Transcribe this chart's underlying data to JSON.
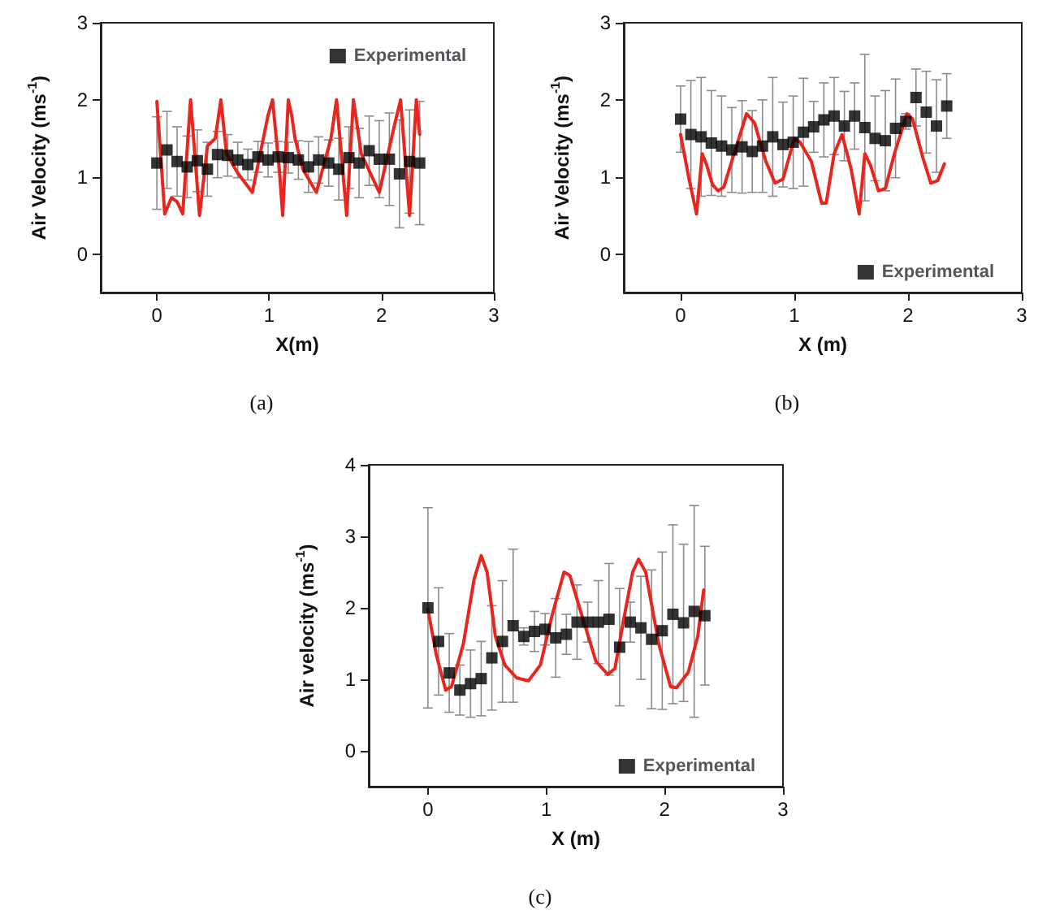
{
  "chart_data": [
    {
      "type": "scatter",
      "xlabel": "X(m)",
      "ylabel": "Air Velocity (ms$^{-1}$)",
      "annotations": [
        "(a)"
      ],
      "xlim": [
        -0.5,
        3
      ],
      "ylim": [
        -0.5,
        3
      ],
      "xticks": [
        0,
        1,
        2,
        3
      ],
      "yticks": [
        0,
        1,
        2,
        3
      ],
      "grid": false,
      "legend": "top right",
      "series": [
        {
          "name": "Experimental",
          "marker": "square",
          "color": "#000000",
          "x": [
            0,
            0.09,
            0.18,
            0.27,
            0.36,
            0.45,
            0.54,
            0.63,
            0.72,
            0.81,
            0.9,
            0.99,
            1.08,
            1.17,
            1.26,
            1.35,
            1.44,
            1.53,
            1.62,
            1.71,
            1.8,
            1.89,
            1.98,
            2.07,
            2.16,
            2.25,
            2.34
          ],
          "values": [
            1.18,
            1.35,
            1.2,
            1.13,
            1.21,
            1.1,
            1.29,
            1.28,
            1.22,
            1.16,
            1.26,
            1.22,
            1.26,
            1.25,
            1.22,
            1.13,
            1.22,
            1.18,
            1.1,
            1.25,
            1.18,
            1.34,
            1.23,
            1.23,
            1.04,
            1.2,
            1.18
          ],
          "errors": [
            0.6,
            0.5,
            0.45,
            0.4,
            0.4,
            0.35,
            0.3,
            0.27,
            0.23,
            0.2,
            0.2,
            0.22,
            0.2,
            0.2,
            0.25,
            0.33,
            0.3,
            0.3,
            0.4,
            0.4,
            0.45,
            0.45,
            0.5,
            0.6,
            0.7,
            0.67,
            0.8
          ]
        },
        {
          "type": "line",
          "color": "#e8261e",
          "x": [
            0,
            0.07,
            0.13,
            0.18,
            0.23,
            0.3,
            0.38,
            0.45,
            0.52,
            0.57,
            0.62,
            0.72,
            0.85,
            0.99,
            1.03,
            1.09,
            1.12,
            1.17,
            1.2,
            1.23,
            1.3,
            1.42,
            1.55,
            1.6,
            1.69,
            1.75,
            1.82,
            1.98,
            2.12,
            2.17,
            2.25,
            2.31,
            2.34
          ],
          "values": [
            1.98,
            0.52,
            0.73,
            0.68,
            0.52,
            2.0,
            0.5,
            1.4,
            1.5,
            2.0,
            1.3,
            1.05,
            0.8,
            1.8,
            2.0,
            1.1,
            0.5,
            2.0,
            1.8,
            1.5,
            1.1,
            0.8,
            1.5,
            2.0,
            0.5,
            2.0,
            1.3,
            0.8,
            1.7,
            2.0,
            0.5,
            2.0,
            1.55
          ]
        }
      ]
    },
    {
      "type": "scatter",
      "xlabel": "X (m)",
      "ylabel": "Air Velocity (ms$^{-1}$)",
      "annotations": [
        "(b)"
      ],
      "xlim": [
        -0.5,
        3
      ],
      "ylim": [
        -0.5,
        3
      ],
      "xticks": [
        0,
        1,
        2,
        3
      ],
      "yticks": [
        0,
        1,
        2,
        3
      ],
      "grid": false,
      "legend": "bottom right",
      "series": [
        {
          "name": "Experimental",
          "marker": "square",
          "color": "#000000",
          "x": [
            0,
            0.09,
            0.18,
            0.27,
            0.36,
            0.45,
            0.54,
            0.63,
            0.72,
            0.81,
            0.9,
            0.99,
            1.08,
            1.17,
            1.26,
            1.35,
            1.44,
            1.53,
            1.62,
            1.71,
            1.8,
            1.89,
            1.98,
            2.07,
            2.16,
            2.25,
            2.34
          ],
          "values": [
            1.75,
            1.55,
            1.52,
            1.44,
            1.4,
            1.35,
            1.39,
            1.33,
            1.4,
            1.52,
            1.42,
            1.45,
            1.58,
            1.65,
            1.74,
            1.79,
            1.66,
            1.79,
            1.64,
            1.5,
            1.47,
            1.63,
            1.72,
            2.03,
            1.84,
            1.66,
            1.92
          ],
          "errors": [
            0.43,
            0.7,
            0.77,
            0.68,
            0.65,
            0.55,
            0.6,
            0.53,
            0.6,
            0.77,
            0.55,
            0.6,
            0.7,
            0.33,
            0.48,
            0.5,
            0.45,
            0.43,
            0.95,
            0.55,
            0.65,
            0.64,
            0.1,
            0.37,
            0.53,
            0.6,
            0.42
          ]
        },
        {
          "type": "line",
          "color": "#e8261e",
          "x": [
            0,
            0.07,
            0.14,
            0.19,
            0.23,
            0.28,
            0.33,
            0.38,
            0.47,
            0.58,
            0.65,
            0.75,
            0.83,
            0.9,
            1.0,
            1.05,
            1.15,
            1.24,
            1.28,
            1.35,
            1.42,
            1.5,
            1.57,
            1.62,
            1.67,
            1.74,
            1.8,
            1.88,
            1.99,
            2.04,
            2.13,
            2.2,
            2.26,
            2.32
          ],
          "values": [
            1.55,
            1.0,
            0.52,
            1.3,
            1.15,
            0.9,
            0.82,
            0.87,
            1.3,
            1.82,
            1.7,
            1.2,
            0.92,
            0.97,
            1.5,
            1.45,
            1.2,
            0.66,
            0.66,
            1.3,
            1.55,
            1.1,
            0.52,
            1.3,
            1.15,
            0.82,
            0.85,
            1.3,
            1.82,
            1.75,
            1.25,
            0.92,
            0.95,
            1.17
          ]
        }
      ]
    },
    {
      "type": "scatter",
      "xlabel": "X (m)",
      "ylabel": "Air velocity (ms$^{-1}$)",
      "annotations": [
        "(c)"
      ],
      "xlim": [
        -0.5,
        3
      ],
      "ylim": [
        -0.5,
        4
      ],
      "xticks": [
        0,
        1,
        2,
        3
      ],
      "yticks": [
        0,
        1,
        2,
        3,
        4
      ],
      "grid": false,
      "legend": "bottom right",
      "series": [
        {
          "name": "Experimental",
          "marker": "square",
          "color": "#000000",
          "x": [
            0,
            0.09,
            0.18,
            0.27,
            0.36,
            0.45,
            0.54,
            0.63,
            0.72,
            0.81,
            0.9,
            0.99,
            1.08,
            1.17,
            1.26,
            1.35,
            1.44,
            1.53,
            1.62,
            1.71,
            1.8,
            1.89,
            1.98,
            2.07,
            2.16,
            2.25,
            2.34
          ],
          "values": [
            2.0,
            1.53,
            1.09,
            0.85,
            0.94,
            1.01,
            1.3,
            1.53,
            1.75,
            1.6,
            1.67,
            1.7,
            1.58,
            1.63,
            1.8,
            1.8,
            1.8,
            1.84,
            1.45,
            1.8,
            1.72,
            1.56,
            1.68,
            1.91,
            1.79,
            1.95,
            1.89
          ],
          "errors": [
            1.4,
            0.75,
            0.55,
            0.35,
            0.47,
            0.52,
            0.73,
            0.85,
            1.07,
            0.12,
            0.28,
            0.22,
            0.55,
            0.28,
            0.52,
            0.28,
            0.58,
            0.78,
            0.82,
            0.28,
            0.72,
            0.97,
            1.1,
            1.25,
            1.1,
            1.48,
            0.97
          ]
        },
        {
          "type": "line",
          "color": "#e8261e",
          "x": [
            0,
            0.07,
            0.15,
            0.2,
            0.3,
            0.39,
            0.45,
            0.5,
            0.57,
            0.65,
            0.75,
            0.85,
            0.95,
            1.05,
            1.15,
            1.2,
            1.3,
            1.42,
            1.52,
            1.58,
            1.65,
            1.73,
            1.78,
            1.84,
            1.95,
            2.05,
            2.1,
            2.2,
            2.28,
            2.33
          ],
          "values": [
            1.98,
            1.35,
            0.85,
            0.9,
            1.5,
            2.4,
            2.73,
            2.5,
            1.6,
            1.2,
            1.02,
            0.98,
            1.2,
            1.9,
            2.5,
            2.45,
            1.9,
            1.25,
            1.07,
            1.15,
            1.8,
            2.5,
            2.68,
            2.5,
            1.5,
            0.9,
            0.88,
            1.1,
            1.6,
            2.25
          ]
        }
      ]
    }
  ]
}
